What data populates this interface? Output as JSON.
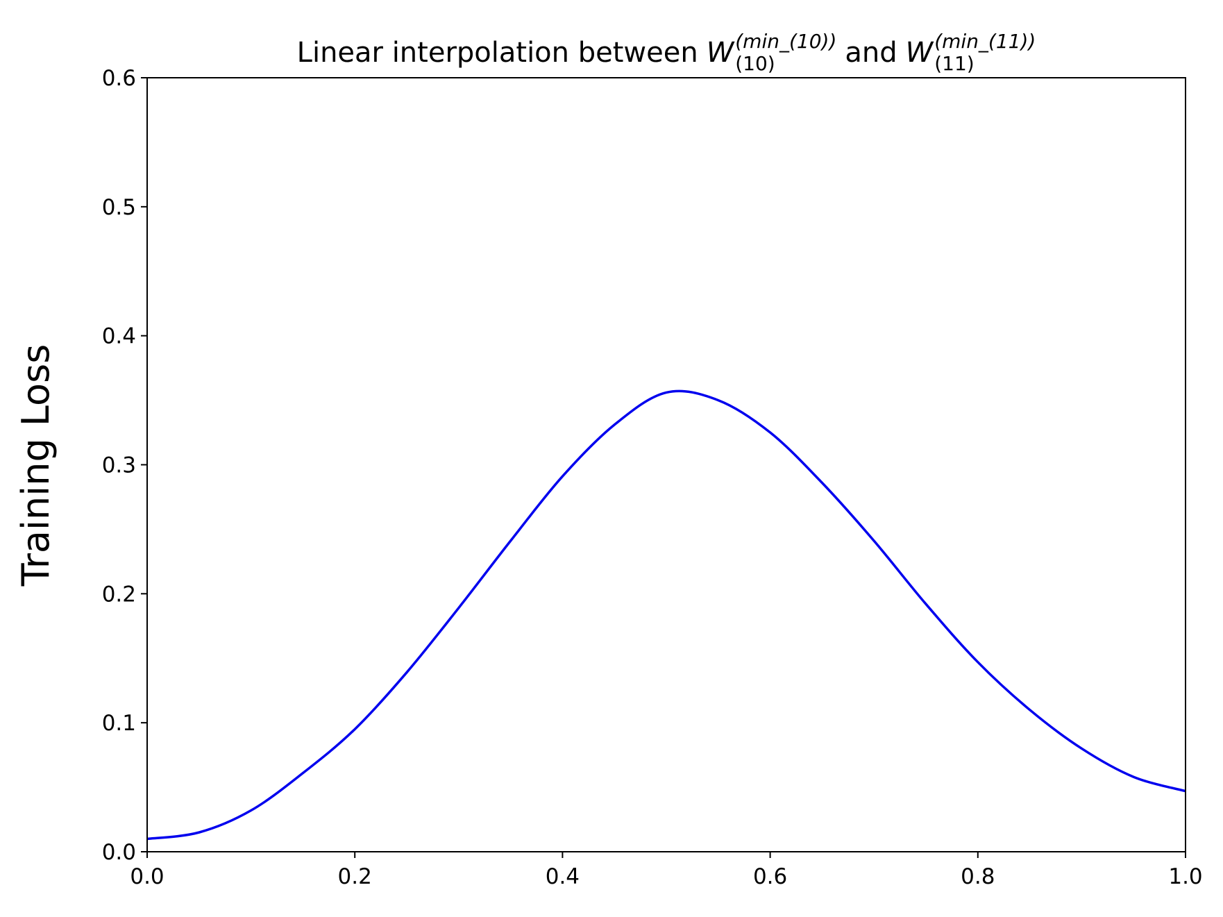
{
  "chart_data": {
    "type": "line",
    "title": [
      "Linear interpolation between",
      {
        "base": "W",
        "sup": "(min_(10))",
        "sub": "(10)"
      },
      "and",
      {
        "base": "W",
        "sup": "(min_(11))",
        "sub": "(11)"
      }
    ],
    "ylabel": "Training Loss",
    "x": [
      0,
      0.05,
      0.1,
      0.15,
      0.2,
      0.25,
      0.3,
      0.35,
      0.4,
      0.45,
      0.5,
      0.55,
      0.6,
      0.65,
      0.7,
      0.75,
      0.8,
      0.85,
      0.9,
      0.95,
      1.0
    ],
    "series": [
      {
        "name": "Training Loss",
        "color": "#0000ee",
        "values": [
          0.01,
          0.015,
          0.032,
          0.061,
          0.095,
          0.139,
          0.189,
          0.241,
          0.291,
          0.331,
          0.356,
          0.35,
          0.325,
          0.286,
          0.241,
          0.192,
          0.147,
          0.11,
          0.08,
          0.058,
          0.047
        ]
      }
    ],
    "xlim": [
      0,
      1.0
    ],
    "xticks": [
      {
        "value": 0,
        "label": "0.0"
      },
      0.2,
      0.4,
      0.6,
      0.8,
      {
        "value": 1.0,
        "label": "1.0"
      }
    ],
    "ylim": [
      0,
      0.6
    ],
    "yticks": [
      {
        "value": 0,
        "label": "0.0"
      },
      0.1,
      0.2,
      0.3,
      0.4,
      0.5,
      0.6
    ],
    "grid": false
  }
}
